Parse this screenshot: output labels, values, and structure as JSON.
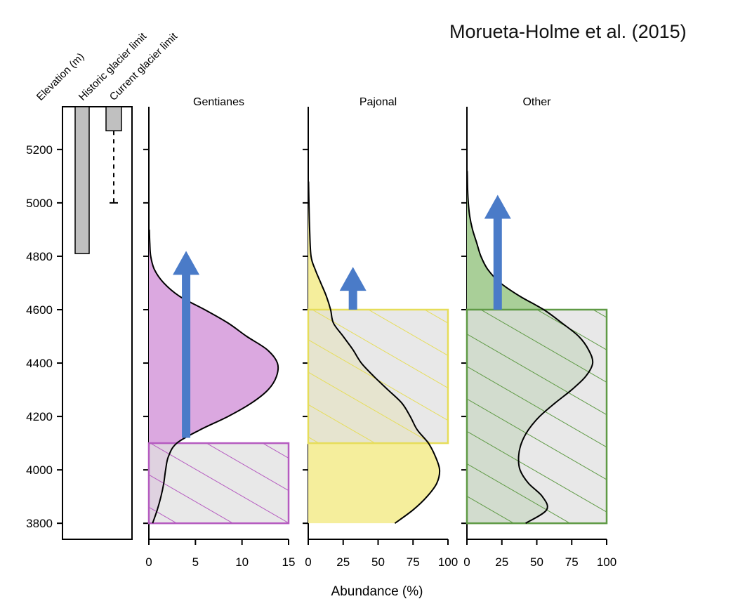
{
  "citation": "Morueta-Holme et al. (2015)",
  "colors": {
    "gentianes_fill": "#dba8e0",
    "gentianes_line": "#b55bc0",
    "pajonal_fill": "#f5ee9c",
    "pajonal_line": "#e6dd5a",
    "other_fill": "#a9cf98",
    "other_line": "#5f9a45",
    "hatch_bg": "#e0e0e0",
    "arrow": "#4a7bc8",
    "glacier_bar": "#c0c0c0"
  },
  "chart_data": [
    {
      "type": "bar",
      "panel": "glacier",
      "column_labels": [
        "Elevation (m)",
        "Historic glacier limit",
        "Current glacier limit"
      ],
      "ylabel": "",
      "ylim": [
        3740,
        5360
      ],
      "yticks": [
        3800,
        4000,
        4200,
        4400,
        4600,
        4800,
        5000,
        5200
      ],
      "bars": [
        {
          "name": "Historic glacier limit",
          "from": 5360,
          "to": 4810
        },
        {
          "name": "Current glacier limit",
          "from": 5360,
          "to": 5270,
          "dashed_to": 5000
        }
      ]
    },
    {
      "type": "area",
      "title": "Gentianes",
      "xlim": [
        0,
        15
      ],
      "xticks": [
        0,
        5,
        10,
        15
      ],
      "ylim": [
        3740,
        5360
      ],
      "hatched_range": {
        "x": [
          0,
          15
        ],
        "y": [
          3800,
          4100
        ]
      },
      "shift_arrow": {
        "x": 4,
        "y_from": 4120,
        "y_to": 4820
      },
      "density": {
        "y": [
          3800,
          3850,
          3900,
          3950,
          4000,
          4050,
          4100,
          4150,
          4200,
          4250,
          4300,
          4350,
          4400,
          4450,
          4500,
          4550,
          4600,
          4650,
          4700,
          4750,
          4800,
          4850,
          4900
        ],
        "x": [
          0.4,
          0.9,
          1.3,
          1.6,
          1.8,
          2.1,
          3.0,
          5.5,
          8.5,
          11.0,
          12.8,
          13.7,
          13.8,
          12.7,
          10.5,
          8.5,
          6.0,
          3.3,
          1.6,
          0.6,
          0.2,
          0.1,
          0.05
        ]
      }
    },
    {
      "type": "area",
      "title": "Pajonal",
      "xlim": [
        0,
        100
      ],
      "xticks": [
        0,
        25,
        50,
        75,
        100
      ],
      "ylim": [
        3740,
        5360
      ],
      "hatched_range": {
        "x": [
          0,
          100
        ],
        "y": [
          4100,
          4600
        ]
      },
      "shift_arrow": {
        "x": 32,
        "y_from": 4600,
        "y_to": 4760
      },
      "density": {
        "y": [
          3800,
          3850,
          3900,
          3950,
          4000,
          4050,
          4100,
          4150,
          4200,
          4250,
          4300,
          4350,
          4400,
          4450,
          4500,
          4550,
          4600,
          4650,
          4700,
          4750,
          4800,
          4900,
          5000,
          5080
        ],
        "x": [
          62,
          75,
          85,
          92,
          94,
          91,
          86,
          78,
          73,
          67,
          57,
          47,
          38,
          32,
          25,
          18,
          16,
          13,
          9,
          5,
          2,
          1,
          0.5,
          0.2
        ]
      }
    },
    {
      "type": "area",
      "title": "Other",
      "xlim": [
        0,
        100
      ],
      "xticks": [
        0,
        25,
        50,
        75,
        100
      ],
      "xlabel": "Abundance (%)",
      "ylim": [
        3740,
        5360
      ],
      "hatched_range": {
        "x": [
          0,
          100
        ],
        "y": [
          3800,
          4600
        ]
      },
      "shift_arrow": {
        "x": 22,
        "y_from": 4600,
        "y_to": 5030
      },
      "density": {
        "y": [
          3800,
          3850,
          3900,
          3950,
          4000,
          4050,
          4100,
          4150,
          4200,
          4250,
          4300,
          4350,
          4400,
          4450,
          4500,
          4550,
          4600,
          4650,
          4700,
          4750,
          4800,
          4850,
          4900,
          4950,
          5000,
          5050,
          5100,
          5120
        ],
        "x": [
          42,
          57,
          54,
          44,
          38,
          37,
          39,
          44,
          52,
          63,
          75,
          85,
          90,
          87,
          80,
          68,
          55,
          38,
          24,
          15,
          10,
          7,
          4,
          2,
          1,
          0.5,
          0.3,
          0.2
        ]
      }
    }
  ]
}
